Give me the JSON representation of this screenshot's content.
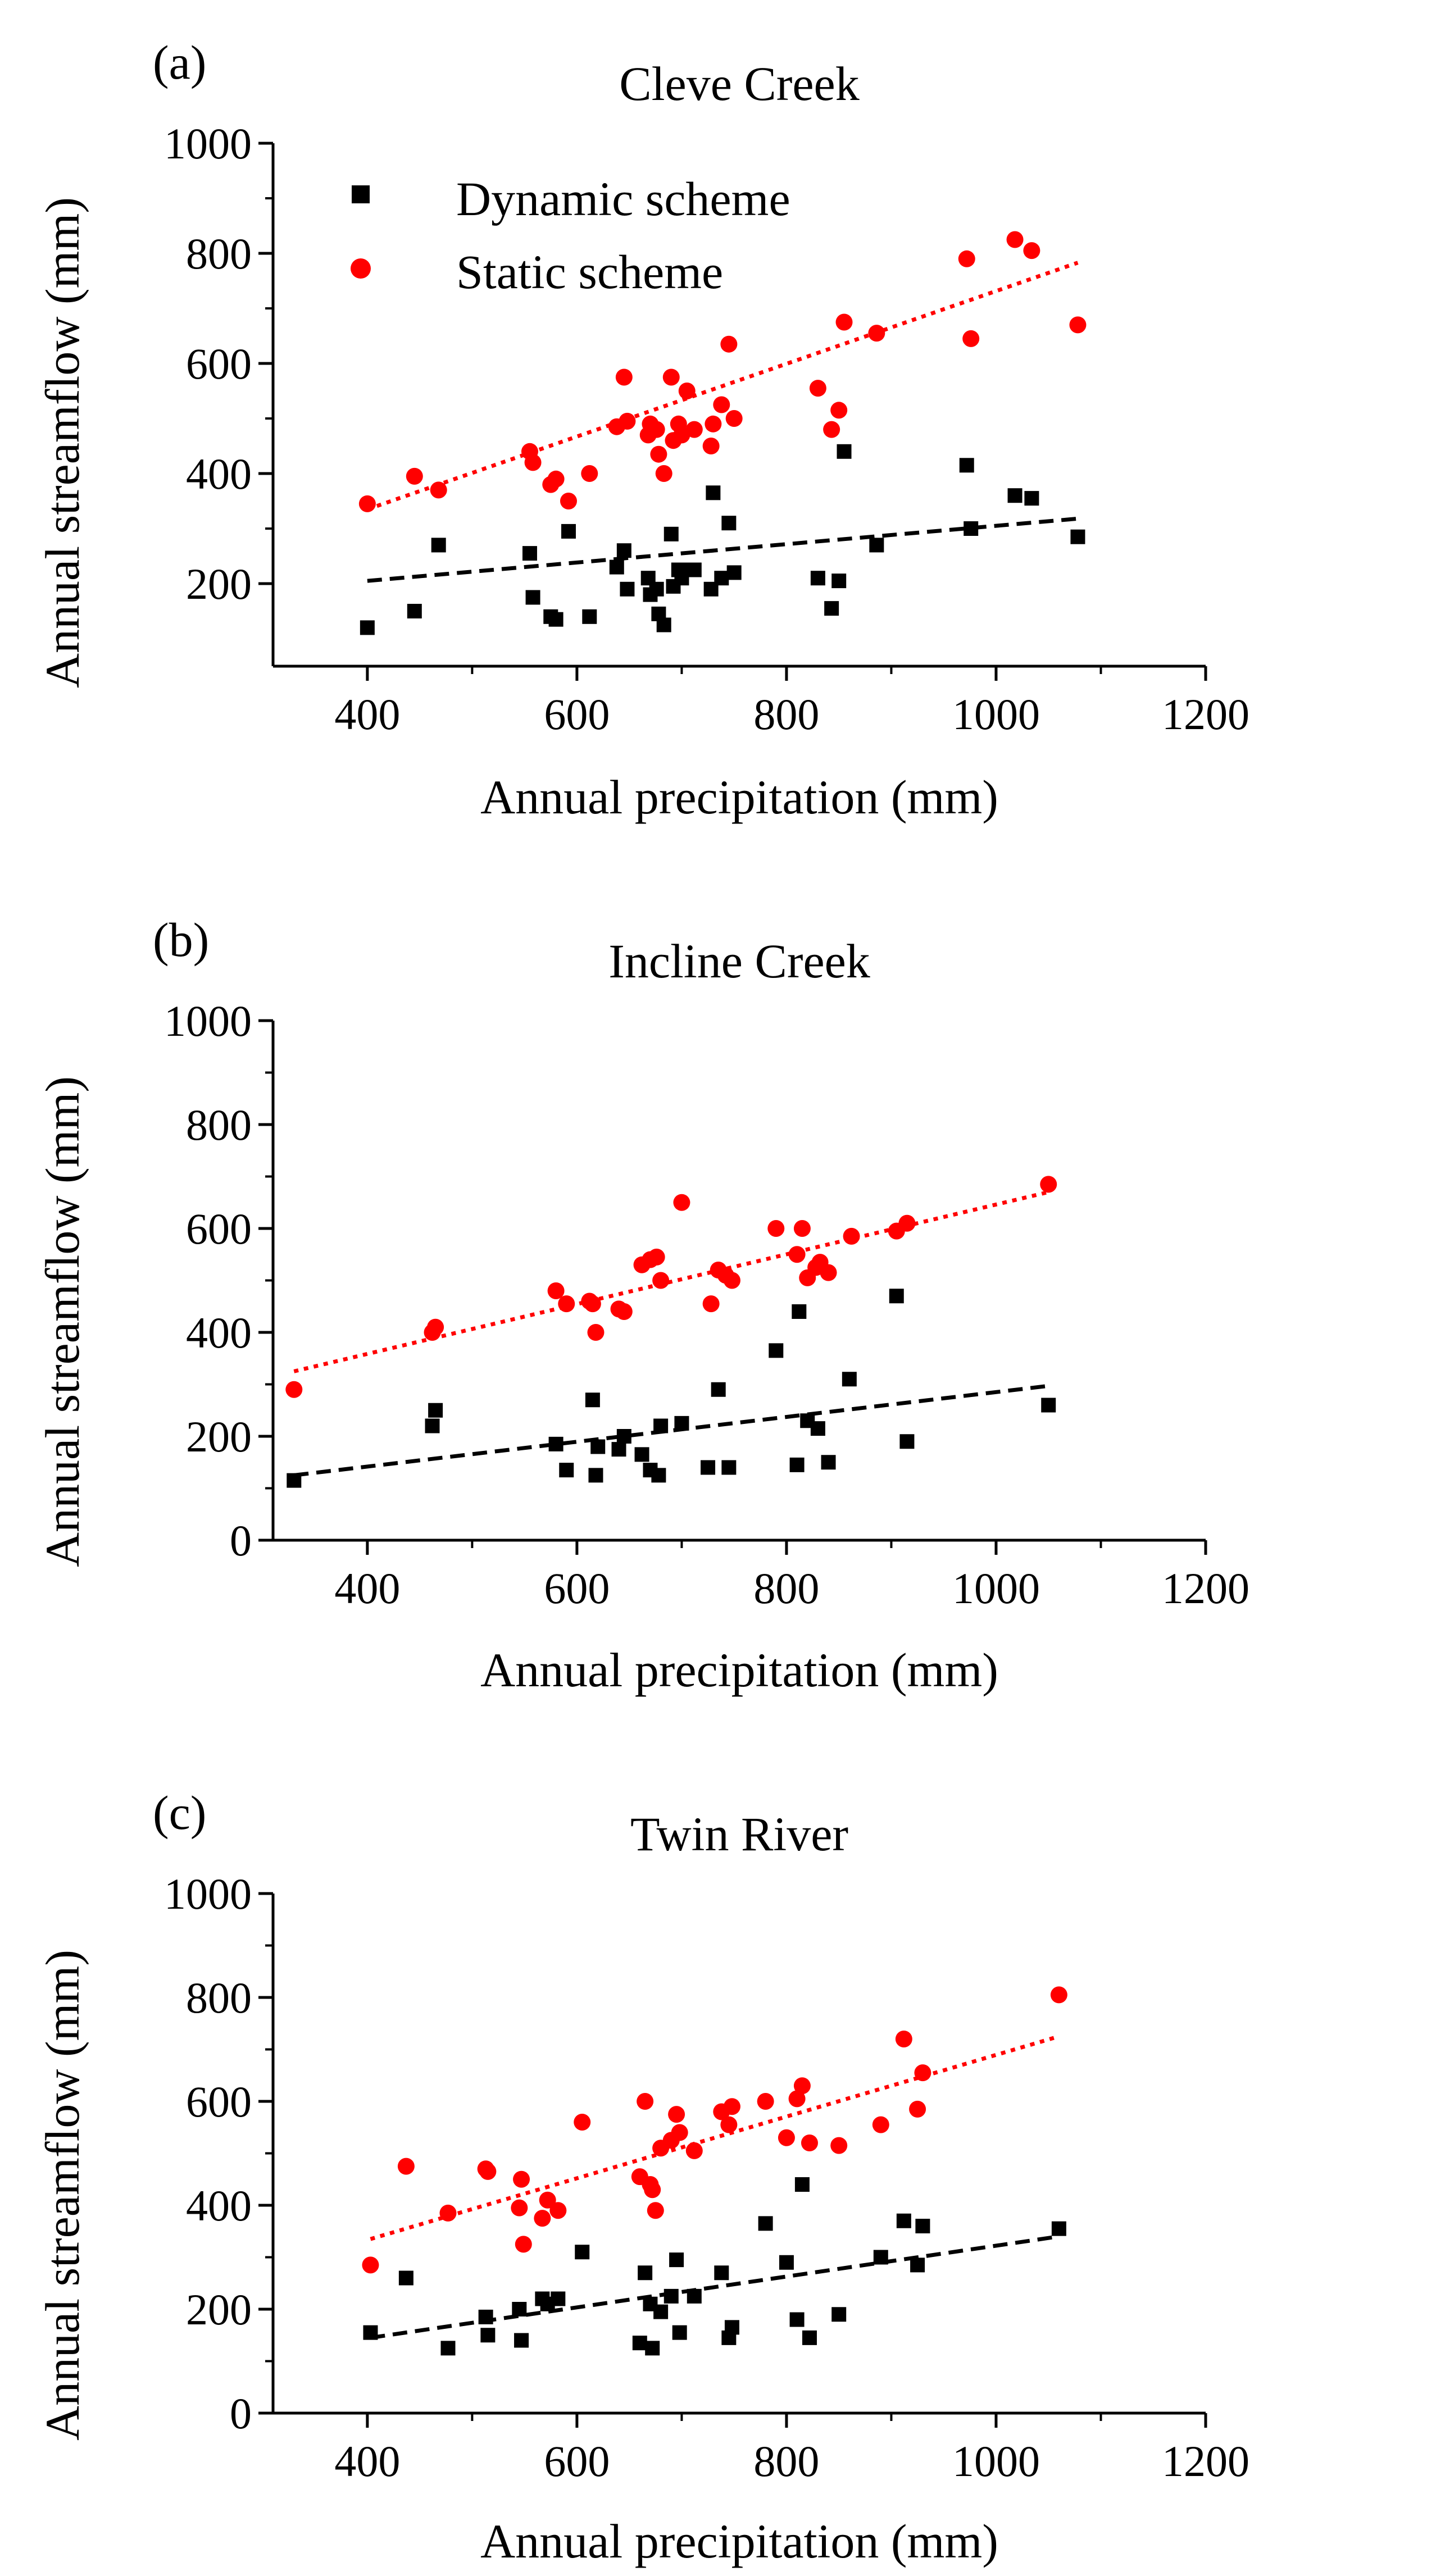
{
  "colors": {
    "dynamic": "#000000",
    "static": "#ff0000",
    "axis": "#000000",
    "background": "#ffffff"
  },
  "legend": {
    "placement": "top-left of panel (a)",
    "entries": [
      {
        "series": "dynamic",
        "label": "Dynamic scheme",
        "marker": "square"
      },
      {
        "series": "static",
        "label": "Static scheme",
        "marker": "circle"
      }
    ]
  },
  "chart_data": [
    {
      "type": "scatter",
      "panel_label": "(a)",
      "title": "Cleve Creek",
      "xlabel": "Annual precipitation (mm)",
      "ylabel": "Annual streamflow (mm)",
      "xlim": [
        310,
        1200
      ],
      "ylim": [
        50,
        1000
      ],
      "xticks": [
        "400",
        "600",
        "800",
        "1000",
        "1200"
      ],
      "yticks": [
        "200",
        "400",
        "600",
        "800",
        "1000"
      ],
      "grid": false,
      "series": [
        {
          "name": "Dynamic scheme",
          "marker": "square",
          "x": [
            400,
            445,
            468,
            555,
            558,
            575,
            580,
            592,
            612,
            638,
            645,
            648,
            668,
            670,
            676,
            678,
            683,
            690,
            692,
            697,
            700,
            705,
            712,
            728,
            730,
            738,
            745,
            750,
            830,
            843,
            850,
            855,
            886,
            972,
            976,
            1018,
            1034,
            1078
          ],
          "y": [
            120,
            150,
            270,
            255,
            175,
            140,
            135,
            295,
            140,
            230,
            260,
            190,
            210,
            180,
            190,
            145,
            125,
            290,
            195,
            225,
            210,
            225,
            225,
            190,
            365,
            210,
            310,
            220,
            210,
            155,
            205,
            440,
            270,
            415,
            300,
            360,
            355,
            285
          ],
          "trendline": {
            "style": "dashed",
            "x": [
              400,
              1078
            ],
            "y": [
              205,
              318
            ]
          }
        },
        {
          "name": "Static scheme",
          "marker": "circle",
          "x": [
            400,
            445,
            468,
            555,
            558,
            575,
            580,
            592,
            612,
            638,
            645,
            648,
            668,
            670,
            676,
            678,
            683,
            690,
            692,
            697,
            700,
            705,
            712,
            728,
            730,
            738,
            745,
            750,
            830,
            843,
            850,
            855,
            886,
            972,
            976,
            1018,
            1034,
            1078
          ],
          "y": [
            345,
            395,
            370,
            440,
            420,
            380,
            390,
            350,
            400,
            485,
            575,
            495,
            470,
            490,
            480,
            435,
            400,
            575,
            460,
            490,
            470,
            550,
            480,
            450,
            490,
            525,
            635,
            500,
            555,
            480,
            515,
            675,
            655,
            790,
            645,
            825,
            805,
            670
          ],
          "trendline": {
            "style": "dotted",
            "x": [
              400,
              1078
            ],
            "y": [
              335,
              783
            ]
          }
        }
      ]
    },
    {
      "type": "scatter",
      "panel_label": "(b)",
      "title": "Incline Creek",
      "xlabel": "Annual precipitation (mm)",
      "ylabel": "Annual streamflow (mm)",
      "xlim": [
        310,
        1200
      ],
      "ylim": [
        0,
        1000
      ],
      "xticks": [
        "400",
        "600",
        "800",
        "1000",
        "1200"
      ],
      "yticks": [
        "0",
        "200",
        "400",
        "600",
        "800",
        "1000"
      ],
      "grid": false,
      "series": [
        {
          "name": "Dynamic scheme",
          "marker": "square",
          "x": [
            330,
            462,
            465,
            580,
            590,
            615,
            618,
            620,
            640,
            645,
            662,
            670,
            678,
            680,
            700,
            725,
            735,
            745,
            790,
            810,
            812,
            820,
            830,
            840,
            860,
            905,
            915,
            1050
          ],
          "y": [
            115,
            220,
            250,
            185,
            135,
            270,
            125,
            180,
            175,
            200,
            165,
            135,
            125,
            220,
            225,
            140,
            290,
            140,
            365,
            145,
            440,
            230,
            215,
            150,
            310,
            470,
            190,
            260
          ],
          "trendline": {
            "style": "dashed",
            "x": [
              330,
              1050
            ],
            "y": [
              125,
              297
            ]
          }
        },
        {
          "name": "Static scheme",
          "marker": "circle",
          "x": [
            330,
            462,
            465,
            580,
            590,
            612,
            615,
            618,
            640,
            645,
            662,
            670,
            676,
            680,
            700,
            728,
            735,
            742,
            748,
            790,
            810,
            815,
            820,
            828,
            832,
            840,
            862,
            905,
            915,
            1050
          ],
          "y": [
            290,
            400,
            410,
            480,
            455,
            460,
            455,
            400,
            445,
            440,
            530,
            540,
            545,
            500,
            650,
            455,
            520,
            510,
            500,
            600,
            550,
            600,
            505,
            525,
            535,
            515,
            585,
            595,
            610,
            685
          ],
          "trendline": {
            "style": "dotted",
            "x": [
              330,
              1050
            ],
            "y": [
              325,
              670
            ]
          }
        }
      ]
    },
    {
      "type": "scatter",
      "panel_label": "(c)",
      "title": "Twin River",
      "xlabel": "Annual precipitation (mm)",
      "ylabel": "Annual streamflow (mm)",
      "xlim": [
        310,
        1200
      ],
      "ylim": [
        0,
        1000
      ],
      "xticks": [
        "400",
        "600",
        "800",
        "1000",
        "1200"
      ],
      "yticks": [
        "0",
        "200",
        "400",
        "600",
        "800",
        "1000"
      ],
      "grid": false,
      "series": [
        {
          "name": "Dynamic scheme",
          "marker": "square",
          "x": [
            403,
            437,
            477,
            513,
            515,
            545,
            547,
            567,
            572,
            582,
            605,
            660,
            665,
            670,
            672,
            680,
            690,
            695,
            698,
            712,
            738,
            745,
            748,
            780,
            800,
            810,
            815,
            822,
            850,
            890,
            912,
            925,
            930,
            1060
          ],
          "y": [
            155,
            260,
            125,
            185,
            150,
            200,
            140,
            220,
            210,
            220,
            310,
            135,
            270,
            210,
            125,
            195,
            225,
            295,
            155,
            225,
            270,
            145,
            165,
            365,
            290,
            180,
            440,
            145,
            190,
            300,
            370,
            285,
            360,
            355
          ],
          "trendline": {
            "style": "dashed",
            "x": [
              403,
              1060
            ],
            "y": [
              145,
              340
            ]
          }
        },
        {
          "name": "Static scheme",
          "marker": "circle",
          "x": [
            403,
            437,
            477,
            513,
            515,
            545,
            547,
            549,
            567,
            572,
            582,
            605,
            660,
            665,
            670,
            672,
            675,
            680,
            690,
            695,
            698,
            712,
            738,
            745,
            748,
            780,
            800,
            810,
            815,
            822,
            850,
            890,
            912,
            925,
            930,
            1060
          ],
          "y": [
            285,
            475,
            385,
            470,
            465,
            395,
            450,
            325,
            375,
            410,
            390,
            560,
            455,
            600,
            440,
            430,
            390,
            510,
            525,
            575,
            540,
            505,
            580,
            555,
            590,
            600,
            530,
            605,
            630,
            520,
            515,
            555,
            720,
            585,
            655,
            805
          ],
          "trendline": {
            "style": "dotted",
            "x": [
              403,
              1060
            ],
            "y": [
              335,
              725
            ]
          }
        }
      ]
    }
  ]
}
